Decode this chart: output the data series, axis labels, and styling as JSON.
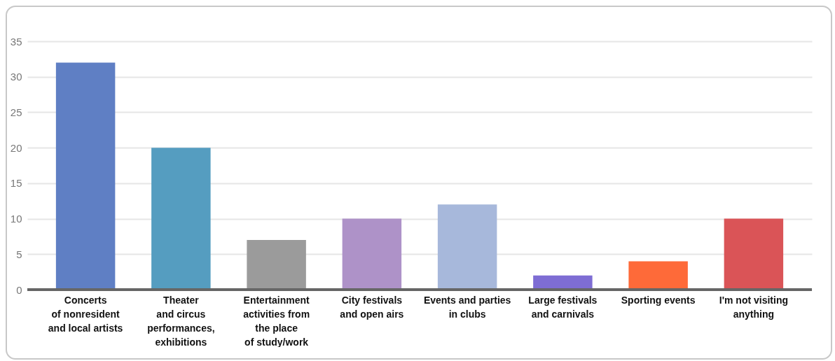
{
  "chart_data": {
    "type": "bar",
    "categories": [
      "Concerts\nof nonresident\nand local artists",
      "Theater\nand circus\nperformances,\nexhibitions",
      "Entertainment\nactivities from\nthe place\nof study/work",
      "City festivals\nand open airs",
      "Events and parties\nin clubs",
      "Large festivals\nand carnivals",
      "Sporting events",
      "I'm not visiting\nanything"
    ],
    "values": [
      32,
      20,
      7,
      10,
      12,
      2,
      4,
      10
    ],
    "colors": [
      "#5f7fc4",
      "#559dc0",
      "#9b9b9b",
      "#ae92c8",
      "#a7b8db",
      "#7e6dd4",
      "#fe6a39",
      "#da5457"
    ],
    "ylim": [
      0,
      35
    ],
    "yticks": [
      0,
      5,
      10,
      15,
      20,
      25,
      30,
      35
    ],
    "grid": "y"
  }
}
